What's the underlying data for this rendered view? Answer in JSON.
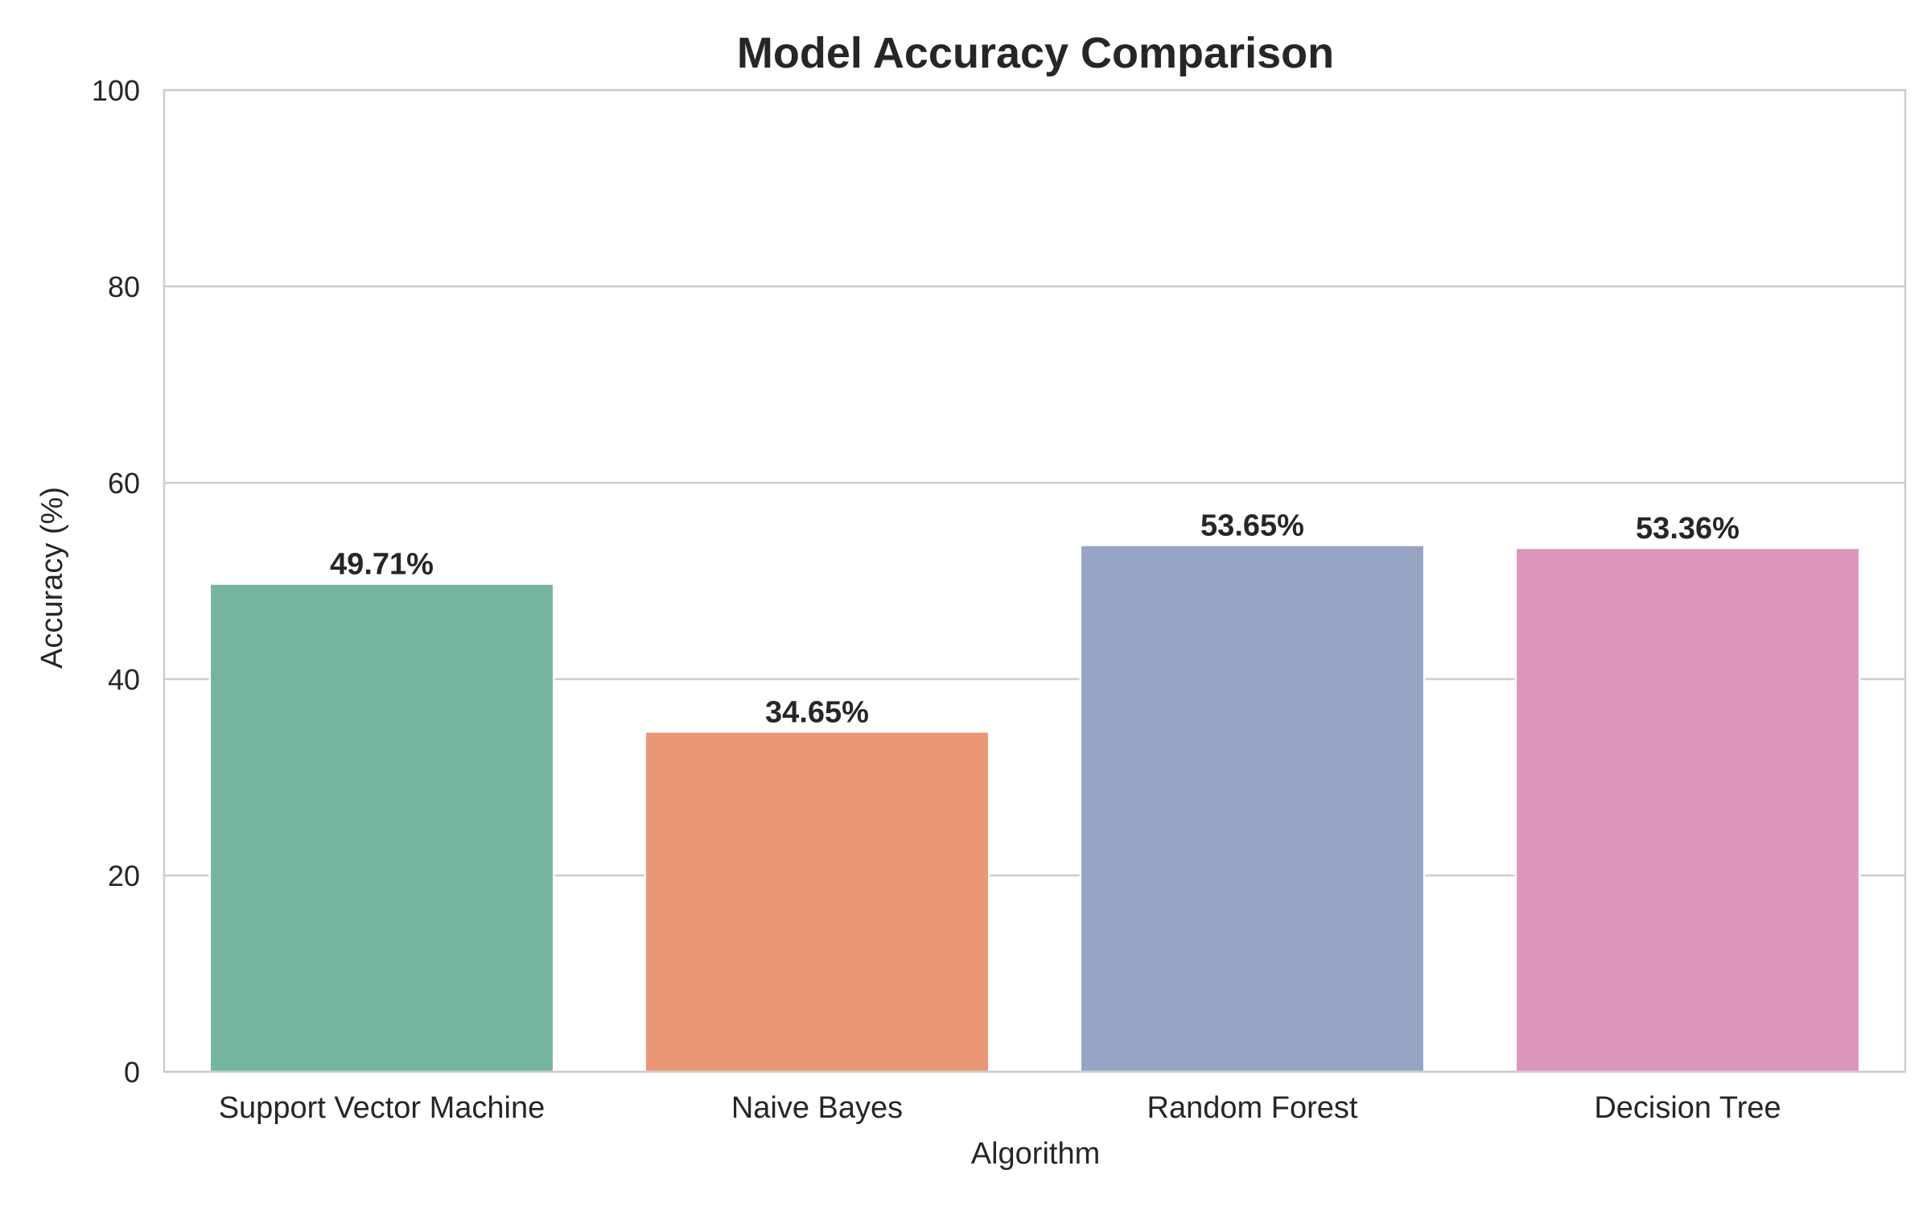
{
  "chart_data": {
    "type": "bar",
    "title": "Model Accuracy Comparison",
    "xlabel": "Algorithm",
    "ylabel": "Accuracy (%)",
    "categories": [
      "Support Vector Machine",
      "Naive Bayes",
      "Random Forest",
      "Decision Tree"
    ],
    "values": [
      49.71,
      34.65,
      53.65,
      53.36
    ],
    "data_labels": [
      "49.71%",
      "34.65%",
      "53.65%",
      "53.36%"
    ],
    "colors": [
      "#75b5a0",
      "#e99675",
      "#96a5c3",
      "#dc96be"
    ],
    "ylim": [
      0,
      100
    ],
    "yticks": [
      0,
      20,
      40,
      60,
      80,
      100
    ],
    "grid": true,
    "legend": "none"
  }
}
